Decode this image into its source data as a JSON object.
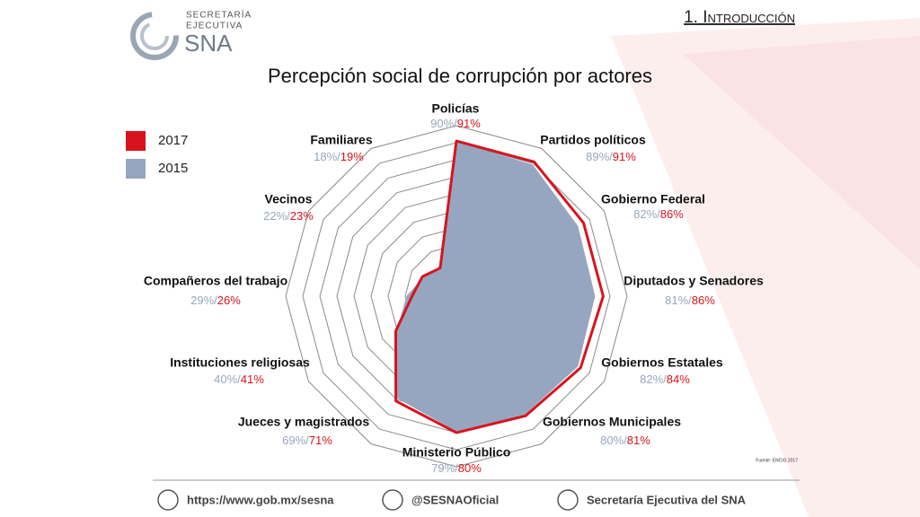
{
  "header": {
    "logo_top": "SECRETARÍA",
    "logo_mid": "EJECUTIVA",
    "logo_main": "SNA",
    "section": "1. Introducción"
  },
  "chart_data": {
    "type": "radar",
    "title": "Percepción social de corrupción por actores",
    "categories": [
      "Policías",
      "Partidos políticos",
      "Gobierno Federal",
      "Diputados y Senadores",
      "Gobiernos Estatales",
      "Gobiernos Municipales",
      "Ministerio Público",
      "Jueces y magistrados",
      "Instituciones religiosas",
      "Compañeros del trabajo",
      "Vecinos",
      "Familiares"
    ],
    "series": [
      {
        "name": "2017",
        "color": "#d7141d",
        "style": "line",
        "values": [
          91,
          91,
          86,
          86,
          84,
          81,
          80,
          71,
          41,
          26,
          23,
          19
        ],
        "value_labels": [
          "91%",
          "91%",
          "86%",
          "86%",
          "84%",
          "81%",
          "80%",
          "71%",
          "41%",
          "26%",
          "23%",
          "19%"
        ]
      },
      {
        "name": "2015",
        "color": "#97a6c0",
        "style": "area",
        "values": [
          90,
          89,
          82,
          81,
          82,
          80,
          79,
          69,
          40,
          29,
          22,
          18
        ],
        "value_labels": [
          "90%/",
          "89%/",
          "82%/",
          "81%/",
          "82%/",
          "80%/",
          "79%/",
          "69%/",
          "40%/",
          "29%/",
          "22%/",
          "18%/"
        ]
      }
    ],
    "rlim": [
      0,
      100
    ],
    "rticks": [
      10,
      20,
      30,
      40,
      50,
      60,
      70,
      80,
      90,
      100
    ],
    "source": "Fuente: ENCIG 2017"
  },
  "footer": {
    "web": "https://www.gob.mx/sesna",
    "twitter": "@SESNAOficial",
    "facebook": "Secretaría Ejecutiva del SNA"
  }
}
